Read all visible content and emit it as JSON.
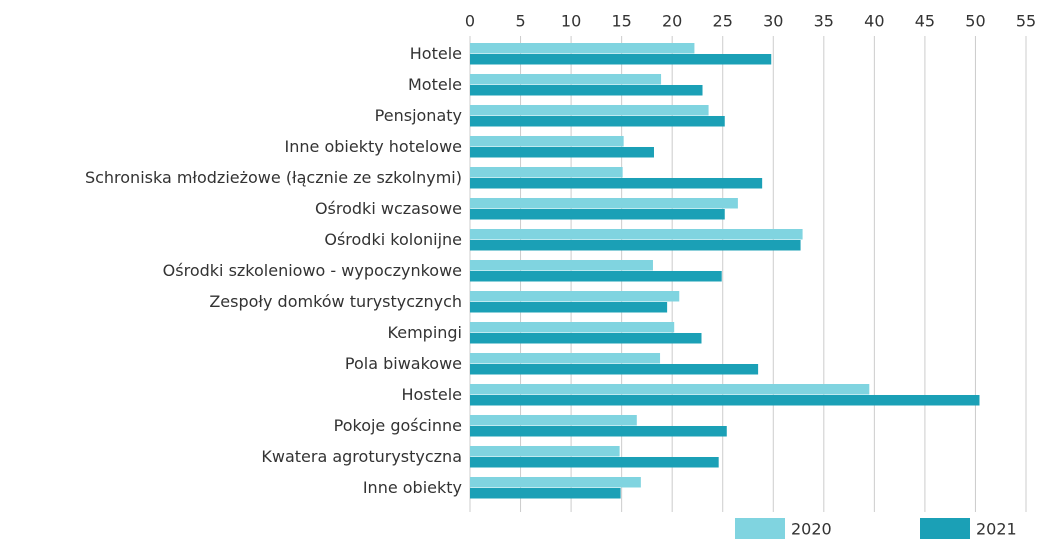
{
  "chart_data": {
    "type": "barh",
    "categories": [
      "Hotele",
      "Motele",
      "Pensjonaty",
      "Inne obiekty hotelowe",
      "Schroniska młodzieżowe (łącznie ze szkolnymi)",
      "Ośrodki wczasowe",
      "Ośrodki kolonijne",
      "Ośrodki szkoleniowo - wypoczynkowe",
      "Zespoły domków turystycznych",
      "Kempingi",
      "Pola biwakowe",
      "Hostele",
      "Pokoje gościnne",
      "Kwatera agroturystyczna",
      "Inne obiekty"
    ],
    "series": [
      {
        "name": "2020",
        "color": "#80d4e0",
        "values": [
          22.2,
          18.9,
          23.6,
          15.2,
          15.1,
          26.5,
          32.9,
          18.1,
          20.7,
          20.2,
          18.8,
          39.5,
          16.5,
          14.8,
          16.9
        ]
      },
      {
        "name": "2021",
        "color": "#1ba0b6",
        "values": [
          29.8,
          23.0,
          25.2,
          18.2,
          28.9,
          25.2,
          32.7,
          24.9,
          19.5,
          22.9,
          28.5,
          50.4,
          25.4,
          24.6,
          14.9
        ]
      }
    ],
    "xlim": [
      0,
      55
    ],
    "xticks": [
      0,
      5,
      10,
      15,
      20,
      25,
      30,
      35,
      40,
      45,
      50,
      55
    ],
    "grid": true,
    "legend": "bottom-right"
  }
}
